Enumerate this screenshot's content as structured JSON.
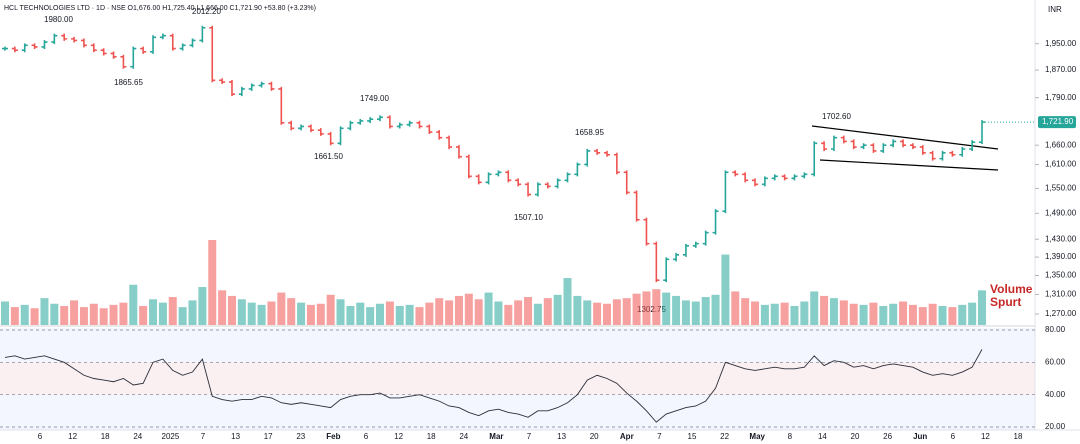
{
  "header": "HCL TECHNOLOGIES LTD · 1D · NSE  O1,676.00 H1,725.40 L1,666.00 C1,721.90 +53.80 (+3.23%)",
  "currency": "INR",
  "volume_note": "Volume Spurt",
  "annotations": [
    "1980.00",
    "2012.20",
    "1865.65",
    "1749.00",
    "1661.50",
    "1658.95",
    "1507.10",
    "1302.75",
    "1702.60"
  ],
  "chart_data": [
    {
      "type": "ohlc",
      "name": "Price",
      "up_color": "#26a69a",
      "down_color": "#ef5350",
      "log_scale": true,
      "values": [
        1935,
        1930,
        1945,
        1940,
        1955,
        1975,
        1965,
        1960,
        1945,
        1930,
        1920,
        1910,
        1880,
        1935,
        1925,
        1970,
        1975,
        1935,
        1945,
        1960,
        2000,
        1840,
        1835,
        1800,
        1815,
        1825,
        1830,
        1815,
        1720,
        1705,
        1710,
        1700,
        1690,
        1665,
        1705,
        1720,
        1725,
        1730,
        1735,
        1710,
        1715,
        1720,
        1710,
        1695,
        1680,
        1655,
        1630,
        1580,
        1565,
        1585,
        1590,
        1570,
        1560,
        1535,
        1560,
        1555,
        1570,
        1585,
        1610,
        1645,
        1640,
        1635,
        1590,
        1540,
        1475,
        1420,
        1340,
        1385,
        1395,
        1415,
        1420,
        1445,
        1495,
        1590,
        1585,
        1570,
        1560,
        1575,
        1580,
        1575,
        1580,
        1585,
        1665,
        1650,
        1680,
        1670,
        1655,
        1660,
        1645,
        1660,
        1670,
        1660,
        1655,
        1640,
        1625,
        1640,
        1635,
        1650,
        1668,
        1721.9
      ],
      "last_price": {
        "value": 1721.9,
        "label": "1,721.90"
      },
      "ylim": [
        1248,
        2090
      ],
      "yticks": [
        {
          "value": 1950,
          "label": "1,950.00"
        },
        {
          "value": 1870,
          "label": "1,870.00"
        },
        {
          "value": 1790,
          "label": "1,790.00"
        },
        {
          "value": 1660,
          "label": "1,660.00"
        },
        {
          "value": 1610,
          "label": "1,610.00"
        },
        {
          "value": 1550,
          "label": "1,550.00"
        },
        {
          "value": 1490,
          "label": "1,490.00"
        },
        {
          "value": 1430,
          "label": "1,430.00"
        },
        {
          "value": 1390,
          "label": "1,390.00"
        },
        {
          "value": 1350,
          "label": "1,350.00"
        },
        {
          "value": 1310,
          "label": "1,310.00"
        },
        {
          "value": 1270,
          "label": "1,270.00"
        }
      ]
    },
    {
      "type": "bar",
      "name": "Volume",
      "values": [
        2.1,
        1.6,
        1.8,
        1.5,
        2.4,
        1.9,
        1.7,
        2.2,
        1.6,
        1.9,
        1.5,
        1.8,
        2.0,
        3.6,
        1.7,
        2.3,
        2.0,
        2.5,
        1.6,
        2.2,
        3.4,
        7.6,
        3.1,
        2.6,
        2.3,
        2.0,
        1.8,
        2.1,
        2.9,
        2.4,
        2.0,
        1.8,
        1.9,
        2.7,
        2.3,
        1.7,
        2.0,
        1.6,
        1.9,
        2.1,
        1.7,
        1.8,
        1.6,
        2.0,
        2.4,
        2.2,
        2.6,
        2.8,
        2.3,
        2.9,
        2.1,
        1.8,
        2.2,
        2.5,
        1.9,
        2.4,
        2.7,
        4.2,
        2.6,
        2.2,
        2.0,
        1.9,
        2.3,
        2.4,
        2.8,
        3.0,
        3.2,
        2.9,
        2.6,
        2.2,
        2.1,
        2.5,
        2.7,
        6.3,
        3.0,
        2.4,
        2.1,
        1.8,
        1.9,
        2.0,
        1.7,
        2.1,
        3.0,
        2.6,
        2.4,
        2.2,
        1.9,
        1.8,
        2.0,
        1.7,
        1.9,
        2.1,
        1.8,
        1.6,
        1.9,
        1.7,
        1.6,
        1.8,
        2.0,
        3.1
      ]
    },
    {
      "type": "line",
      "name": "RSI",
      "color": "#2a2e39",
      "values": [
        63,
        64,
        62,
        63,
        64,
        62,
        60,
        56,
        52,
        50,
        49,
        48,
        50,
        46,
        47,
        60,
        62,
        55,
        52,
        54,
        62,
        39,
        37,
        36,
        37,
        37,
        39,
        38,
        35,
        34,
        35,
        34,
        33,
        32,
        37,
        39,
        40,
        40,
        41,
        38,
        38,
        39,
        40,
        38,
        36,
        33,
        32,
        29,
        27,
        30,
        31,
        29,
        28,
        26,
        30,
        30,
        32,
        35,
        40,
        49,
        52,
        50,
        47,
        41,
        36,
        30,
        23,
        28,
        30,
        32,
        33,
        36,
        44,
        60,
        58,
        56,
        55,
        56,
        57,
        56,
        56,
        57,
        64,
        58,
        61,
        60,
        57,
        58,
        56,
        58,
        59,
        58,
        57,
        54,
        52,
        53,
        52,
        54,
        57,
        68
      ],
      "ylim": [
        20,
        80
      ],
      "yticks": [
        {
          "value": 80,
          "label": "80.00"
        },
        {
          "value": 60,
          "label": "60.00"
        },
        {
          "value": 40,
          "label": "40.00"
        },
        {
          "value": 20,
          "label": "20.00"
        }
      ],
      "x_axis_labels": [
        "6",
        "12",
        "18",
        "24",
        "2025",
        "7",
        "13",
        "17",
        "23",
        "Feb",
        "6",
        "12",
        "18",
        "24",
        "Mar",
        "7",
        "13",
        "20",
        "Apr",
        "7",
        "15",
        "22",
        "May",
        "8",
        "14",
        "20",
        "26",
        "Jun",
        "6",
        "12",
        "18"
      ]
    }
  ]
}
